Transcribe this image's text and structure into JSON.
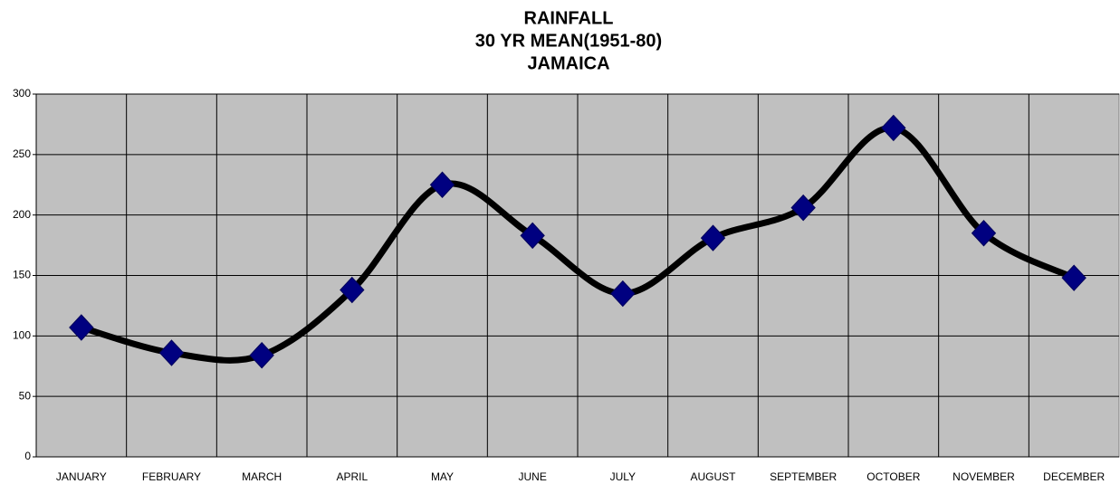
{
  "chart_data": {
    "type": "line",
    "title": [
      "RAINFALL",
      "30 YR MEAN(1951-80)",
      "JAMAICA"
    ],
    "categories": [
      "JANUARY",
      "FEBRUARY",
      "MARCH",
      "APRIL",
      "MAY",
      "JUNE",
      "JULY",
      "AUGUST",
      "SEPTEMBER",
      "OCTOBER",
      "NOVEMBER",
      "DECEMBER"
    ],
    "series": [
      {
        "name": "Rainfall",
        "color": "#000000",
        "marker_color": "#000080",
        "values": [
          107,
          86,
          84,
          138,
          225,
          183,
          135,
          181,
          206,
          272,
          185,
          148
        ]
      }
    ],
    "ylim": [
      0,
      300
    ],
    "yticks": [
      0,
      50,
      100,
      150,
      200,
      250,
      300
    ],
    "grid": true,
    "smooth": true
  }
}
